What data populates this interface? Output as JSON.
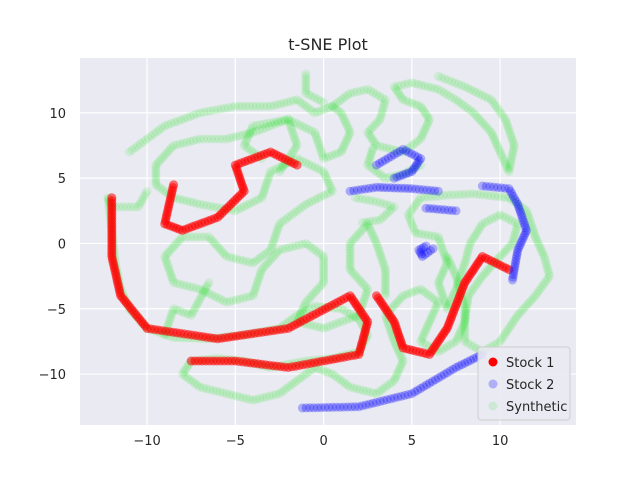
{
  "chart_data": {
    "type": "scatter",
    "title": "t-SNE Plot",
    "xlabel": "",
    "ylabel": "",
    "xlim": [
      -13.8,
      14.3
    ],
    "ylim": [
      -13.9,
      14.2
    ],
    "x_ticks": [
      -10,
      -5,
      0,
      5,
      10
    ],
    "y_ticks": [
      -10,
      -5,
      0,
      5,
      10
    ],
    "x_tick_labels": [
      "−10",
      "−5",
      "0",
      "5",
      "10"
    ],
    "y_tick_labels": [
      "−10",
      "−5",
      "0",
      "5",
      "10"
    ],
    "grid": true,
    "legend_position": "lower-right",
    "series": [
      {
        "name": "Stock 1",
        "color": "#ff0000",
        "paths": [
          [
            [
              -12,
              3.5
            ],
            [
              -12,
              -1
            ],
            [
              -11.5,
              -4
            ],
            [
              -10,
              -6.5
            ],
            [
              -6,
              -7.3
            ],
            [
              -2,
              -6.5
            ],
            [
              1.5,
              -4
            ],
            [
              2.5,
              -6
            ],
            [
              2,
              -8.5
            ],
            [
              -2,
              -9.5
            ],
            [
              -5,
              -9
            ],
            [
              -7.5,
              -9
            ]
          ],
          [
            [
              -8.5,
              4.5
            ],
            [
              -9,
              1.5
            ],
            [
              -8,
              1
            ],
            [
              -6,
              2
            ],
            [
              -4.5,
              4
            ],
            [
              -5,
              6
            ],
            [
              -3,
              7
            ],
            [
              -1.5,
              6
            ]
          ],
          [
            [
              3,
              -4
            ],
            [
              4,
              -6
            ],
            [
              4.5,
              -8
            ],
            [
              6,
              -8.5
            ],
            [
              7,
              -6.5
            ],
            [
              8,
              -3
            ],
            [
              9,
              -1
            ],
            [
              10.5,
              -2
            ]
          ]
        ]
      },
      {
        "name": "Stock 2",
        "color": "#0000ff",
        "paths": [
          [
            [
              -1.2,
              -12.6
            ],
            [
              2,
              -12.5
            ],
            [
              5,
              -11.5
            ],
            [
              7.5,
              -9.5
            ],
            [
              9,
              -8.5
            ]
          ],
          [
            [
              9,
              4.4
            ],
            [
              10.5,
              4.2
            ],
            [
              11,
              3
            ],
            [
              11.5,
              1
            ],
            [
              11,
              -0.5
            ],
            [
              10.7,
              -2.8
            ]
          ],
          [
            [
              5.8,
              2.7
            ],
            [
              7.5,
              2.5
            ]
          ],
          [
            [
              5.8,
              -0.2
            ],
            [
              5.4,
              -0.5
            ],
            [
              5.6,
              -1
            ],
            [
              6.2,
              -0.4
            ]
          ],
          [
            [
              3,
              6
            ],
            [
              4.5,
              7.2
            ],
            [
              5.5,
              6.5
            ],
            [
              5,
              5.5
            ],
            [
              4,
              5
            ]
          ],
          [
            [
              1.5,
              4
            ],
            [
              3,
              4.3
            ],
            [
              5,
              4.2
            ],
            [
              6.5,
              4
            ]
          ]
        ]
      },
      {
        "name": "Synthetic",
        "color": "#00e000",
        "paths": [
          [
            [
              -11,
              7
            ],
            [
              -9,
              9
            ],
            [
              -7,
              10
            ],
            [
              -5,
              10.5
            ],
            [
              -3,
              10.5
            ],
            [
              -1.5,
              11
            ],
            [
              -0.5,
              10
            ],
            [
              0.5,
              10.5
            ],
            [
              1,
              10
            ],
            [
              1.5,
              8.5
            ],
            [
              1,
              7
            ],
            [
              0,
              6.5
            ],
            [
              -0.5,
              8.5
            ],
            [
              -2,
              9.5
            ],
            [
              -4,
              8.5
            ],
            [
              -5.5,
              8
            ],
            [
              -7,
              8
            ],
            [
              -8.5,
              7.5
            ],
            [
              -9.5,
              6
            ],
            [
              -9.5,
              4.5
            ],
            [
              -8.5,
              3.5
            ],
            [
              -7,
              3
            ],
            [
              -5,
              2.5
            ],
            [
              -3.5,
              3.5
            ],
            [
              -3,
              5.5
            ],
            [
              -1.5,
              6.5
            ],
            [
              0,
              5.5
            ],
            [
              0.5,
              4
            ],
            [
              -1,
              3
            ],
            [
              -2.5,
              1.5
            ],
            [
              -3,
              -0.5
            ],
            [
              -4,
              -1.5
            ],
            [
              -5.5,
              -1
            ],
            [
              -6.5,
              0.5
            ],
            [
              -8,
              0.5
            ],
            [
              -9,
              -1
            ],
            [
              -8.5,
              -3
            ],
            [
              -7,
              -3.5
            ],
            [
              -5.5,
              -4.5
            ],
            [
              -4,
              -4
            ],
            [
              -3.5,
              -2
            ],
            [
              -2.5,
              -0.5
            ],
            [
              -1,
              0
            ],
            [
              0,
              -1
            ],
            [
              0,
              -3
            ],
            [
              -1,
              -4.5
            ],
            [
              -1.5,
              -6
            ],
            [
              0,
              -6.5
            ],
            [
              2,
              -5.5
            ],
            [
              2.5,
              -3.5
            ],
            [
              1.5,
              -2
            ],
            [
              1.5,
              0
            ],
            [
              2.5,
              1.5
            ],
            [
              3,
              0
            ],
            [
              3.5,
              -2
            ],
            [
              3.5,
              -4
            ]
          ],
          [
            [
              -12.2,
              3.4
            ],
            [
              -12,
              1
            ],
            [
              -11.8,
              -1.5
            ],
            [
              -11.5,
              -3.5
            ],
            [
              -11,
              -5
            ],
            [
              -10,
              -6.5
            ],
            [
              -8.5,
              -7.2
            ],
            [
              -6.5,
              -7.3
            ],
            [
              -4.5,
              -7
            ],
            [
              -2.5,
              -6.5
            ],
            [
              -1.5,
              -5.5
            ],
            [
              -0.5,
              -4.8
            ],
            [
              1,
              -5
            ],
            [
              2,
              -5.8
            ],
            [
              2.5,
              -7
            ],
            [
              2,
              -8.3
            ],
            [
              0.5,
              -8.8
            ],
            [
              -1,
              -9
            ],
            [
              -3,
              -9.5
            ],
            [
              -4.5,
              -9
            ],
            [
              -6,
              -8.8
            ],
            [
              -7.5,
              -9
            ],
            [
              -8,
              -10
            ],
            [
              -7,
              -11
            ],
            [
              -5.5,
              -11.5
            ],
            [
              -4,
              -12
            ],
            [
              -2.5,
              -11.5
            ],
            [
              -1.5,
              -10.5
            ],
            [
              -0.5,
              -9.5
            ],
            [
              0.5,
              -10
            ],
            [
              1.5,
              -11
            ],
            [
              3,
              -11.5
            ],
            [
              4,
              -10.5
            ],
            [
              4.5,
              -9
            ],
            [
              4,
              -7.5
            ],
            [
              3.5,
              -5.5
            ],
            [
              4.5,
              -4
            ],
            [
              5.5,
              -3.5
            ],
            [
              6.5,
              -4.5
            ],
            [
              6,
              -6
            ],
            [
              5.5,
              -7.5
            ],
            [
              6.5,
              -8.3
            ],
            [
              7.5,
              -7.5
            ],
            [
              8,
              -6
            ],
            [
              8.2,
              -4
            ],
            [
              9,
              -2.5
            ],
            [
              10,
              -1
            ],
            [
              10.7,
              0
            ],
            [
              11,
              1.5
            ],
            [
              10,
              2.2
            ],
            [
              9,
              1.5
            ],
            [
              8.3,
              0
            ],
            [
              8,
              -1.5
            ],
            [
              7.5,
              -3.5
            ],
            [
              7,
              -5
            ],
            [
              6.5,
              -3
            ],
            [
              7,
              -1.5
            ],
            [
              6.5,
              0.5
            ],
            [
              5.2,
              0.8
            ],
            [
              4.8,
              2.2
            ],
            [
              5.5,
              3.5
            ],
            [
              7,
              3.7
            ],
            [
              8.5,
              3.8
            ],
            [
              10.5,
              3.5
            ],
            [
              11.5,
              2.5
            ],
            [
              12,
              0.5
            ],
            [
              12.5,
              -1
            ],
            [
              12.8,
              -2.5
            ],
            [
              12,
              -4
            ],
            [
              11,
              -5.5
            ],
            [
              10,
              -7.5
            ],
            [
              9,
              -8.3
            ],
            [
              8,
              -7.5
            ],
            [
              8,
              -5
            ],
            [
              7.5,
              -2.5
            ],
            [
              7,
              -1
            ]
          ],
          [
            [
              -10,
              4
            ],
            [
              -10.5,
              2.8
            ],
            [
              -12,
              2.8
            ],
            [
              -12.2,
              3.5
            ]
          ],
          [
            [
              -3.5,
              6.5
            ],
            [
              -4.5,
              7.5
            ],
            [
              -4,
              9
            ],
            [
              -2,
              9.5
            ],
            [
              -1.5,
              7.5
            ],
            [
              -2.5,
              5.5
            ]
          ],
          [
            [
              0.5,
              10.5
            ],
            [
              1.5,
              11.5
            ],
            [
              2.5,
              11.8
            ],
            [
              3.5,
              11
            ],
            [
              3.2,
              9.5
            ],
            [
              2.5,
              8.5
            ],
            [
              3,
              7.5
            ],
            [
              4.5,
              7
            ],
            [
              5.5,
              8
            ],
            [
              6,
              9.5
            ],
            [
              5.5,
              10.5
            ],
            [
              4.5,
              11
            ],
            [
              4,
              12
            ],
            [
              5,
              12.3
            ],
            [
              6.5,
              11.8
            ],
            [
              7.5,
              11
            ],
            [
              8.5,
              10
            ],
            [
              9.5,
              8.5
            ],
            [
              10,
              7
            ],
            [
              10.5,
              5.5
            ],
            [
              10.8,
              7.5
            ],
            [
              10.3,
              9.5
            ],
            [
              9.5,
              11
            ],
            [
              8,
              12
            ],
            [
              6.5,
              12.8
            ]
          ],
          [
            [
              -1,
              13
            ],
            [
              -1,
              11.5
            ],
            [
              0,
              10.8
            ]
          ],
          [
            [
              5.5,
              6
            ],
            [
              4.5,
              5.3
            ],
            [
              3.5,
              5
            ],
            [
              2.5,
              6
            ],
            [
              2.8,
              7.3
            ]
          ],
          [
            [
              -6.5,
              -3
            ],
            [
              -7.5,
              -5.5
            ],
            [
              -8.5,
              -5
            ],
            [
              -9,
              -7
            ]
          ],
          [
            [
              2.2,
              1.6
            ],
            [
              3.2,
              1.8
            ],
            [
              4,
              2.8
            ],
            [
              3,
              3.2
            ],
            [
              1.8,
              3.5
            ]
          ]
        ]
      }
    ]
  }
}
